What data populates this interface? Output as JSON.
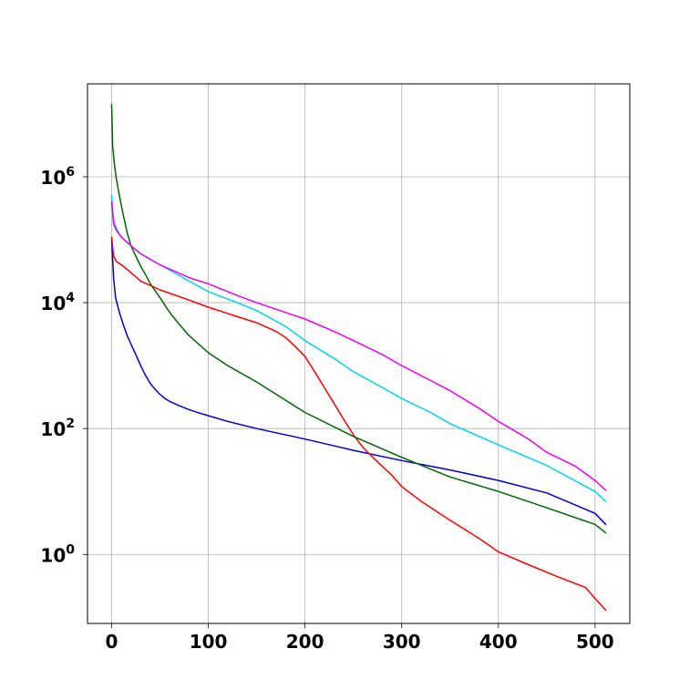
{
  "chart_data": {
    "type": "line",
    "title": "",
    "xlabel": "",
    "ylabel": "",
    "x_scale": "linear",
    "y_scale": "log",
    "xlim": [
      -25,
      536
    ],
    "ylim": [
      0.08,
      30000000
    ],
    "grid": true,
    "legend": "none",
    "x_ticks": [
      {
        "value": 0,
        "label": "0"
      },
      {
        "value": 100,
        "label": "100"
      },
      {
        "value": 200,
        "label": "200"
      },
      {
        "value": 300,
        "label": "300"
      },
      {
        "value": 400,
        "label": "400"
      },
      {
        "value": 500,
        "label": "500"
      }
    ],
    "y_ticks": [
      {
        "value": 1,
        "base": "10",
        "exp": "0"
      },
      {
        "value": 100,
        "base": "10",
        "exp": "2"
      },
      {
        "value": 10000,
        "base": "10",
        "exp": "4"
      },
      {
        "value": 1000000,
        "base": "10",
        "exp": "6"
      }
    ],
    "series": [
      {
        "color": "#0000cc",
        "x": [
          0,
          2,
          4,
          8,
          12,
          16,
          20,
          25,
          30,
          35,
          40,
          45,
          50,
          55,
          60,
          70,
          80,
          90,
          100,
          120,
          150,
          200,
          250,
          300,
          350,
          400,
          450,
          500,
          511
        ],
        "y": [
          100000,
          25000,
          12000,
          7000,
          4500,
          3000,
          2200,
          1500,
          1000,
          700,
          520,
          420,
          350,
          300,
          270,
          230,
          200,
          178,
          160,
          130,
          100,
          68,
          45,
          31,
          22,
          15,
          9.5,
          4.5,
          3.0
        ]
      },
      {
        "color": "#ff0000",
        "x": [
          0,
          2,
          5,
          10,
          20,
          30,
          50,
          80,
          100,
          130,
          150,
          170,
          180,
          190,
          200,
          210,
          220,
          230,
          240,
          250,
          260,
          270,
          280,
          290,
          300,
          320,
          350,
          380,
          400,
          430,
          460,
          490,
          500,
          511
        ],
        "y": [
          110000,
          55000,
          45000,
          40000,
          30000,
          22000,
          16000,
          11000,
          8500,
          6000,
          4800,
          3500,
          2800,
          2000,
          1400,
          800,
          450,
          250,
          140,
          80,
          50,
          35,
          25,
          18,
          12,
          7,
          3.5,
          1.8,
          1.1,
          0.7,
          0.45,
          0.3,
          0.2,
          0.13
        ]
      },
      {
        "color": "#006600",
        "x": [
          0,
          1,
          3,
          5,
          8,
          12,
          16,
          20,
          25,
          30,
          35,
          40,
          50,
          60,
          70,
          80,
          100,
          120,
          150,
          200,
          250,
          300,
          350,
          400,
          450,
          500,
          511
        ],
        "y": [
          14000000,
          3000000,
          1500000,
          900000,
          500000,
          250000,
          130000,
          80000,
          55000,
          38000,
          28000,
          20000,
          12000,
          7000,
          4500,
          3000,
          1600,
          1000,
          550,
          180,
          75,
          35,
          17,
          10,
          5.5,
          3.0,
          2.2
        ]
      },
      {
        "color": "#00d5ee",
        "x": [
          0,
          2,
          5,
          10,
          20,
          30,
          50,
          80,
          100,
          130,
          150,
          180,
          200,
          230,
          250,
          280,
          300,
          330,
          350,
          400,
          450,
          500,
          511
        ],
        "y": [
          500000,
          200000,
          150000,
          110000,
          80000,
          60000,
          40000,
          22000,
          15000,
          10000,
          7500,
          4200,
          2500,
          1300,
          800,
          450,
          300,
          180,
          120,
          55,
          26,
          10,
          7
        ]
      },
      {
        "color": "#ee00ee",
        "x": [
          0,
          2,
          5,
          10,
          20,
          30,
          50,
          80,
          100,
          130,
          150,
          180,
          200,
          230,
          250,
          280,
          300,
          330,
          350,
          380,
          400,
          430,
          450,
          480,
          500,
          511
        ],
        "y": [
          400000,
          180000,
          140000,
          110000,
          80000,
          60000,
          40000,
          25000,
          20000,
          13000,
          10000,
          7000,
          5500,
          3500,
          2500,
          1500,
          1000,
          580,
          400,
          210,
          130,
          70,
          42,
          25,
          15,
          10.5
        ]
      }
    ]
  }
}
